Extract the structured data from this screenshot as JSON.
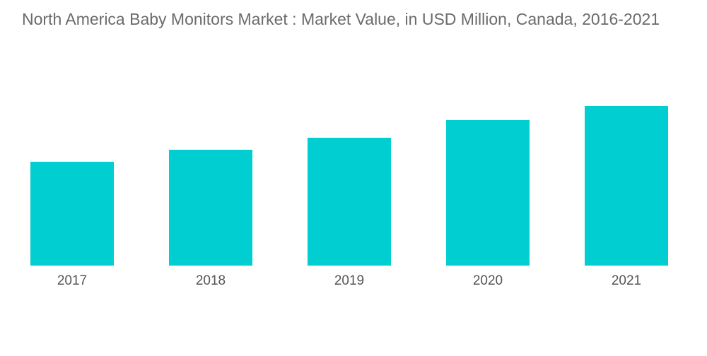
{
  "chart_data": {
    "type": "bar",
    "title": "North America Baby Monitors Market : Market Value, in USD Million, Canada, 2016-2021",
    "categories": [
      "2017",
      "2018",
      "2019",
      "2020",
      "2021"
    ],
    "values": [
      147,
      164,
      181,
      206,
      226
    ],
    "xlabel": "",
    "ylabel": "",
    "ylim": [
      0,
      260
    ],
    "grid": false,
    "legend": "none",
    "bar_color": "#00CED1"
  }
}
